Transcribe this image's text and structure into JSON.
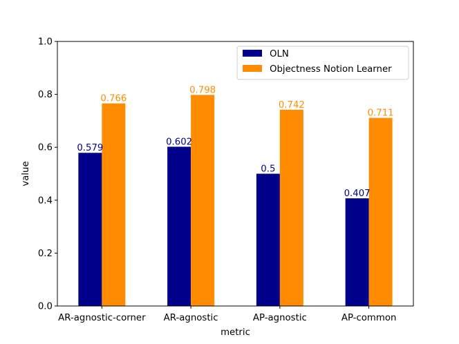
{
  "chart_data": {
    "type": "bar",
    "title": "",
    "xlabel": "metric",
    "ylabel": "value",
    "ylim": [
      0,
      1.0
    ],
    "yticks": [
      0.0,
      0.2,
      0.4,
      0.6,
      0.8,
      1.0
    ],
    "ytick_labels": [
      "0.0",
      "0.2",
      "0.4",
      "0.6",
      "0.8",
      "1.0"
    ],
    "categories": [
      "AR-agnostic-corner",
      "AR-agnostic",
      "AP-agnostic",
      "AP-common"
    ],
    "series": [
      {
        "name": "OLN",
        "color": "#00008b",
        "values": [
          0.579,
          0.602,
          0.5,
          0.407
        ],
        "labels": [
          "0.579",
          "0.602",
          "0.5",
          "0.407"
        ]
      },
      {
        "name": "Objectness Notion Learner",
        "color": "#ff8c00",
        "values": [
          0.766,
          0.798,
          0.742,
          0.711
        ],
        "labels": [
          "0.766",
          "0.798",
          "0.742",
          "0.711"
        ]
      }
    ],
    "grid": false,
    "legend_position": "top-right"
  }
}
